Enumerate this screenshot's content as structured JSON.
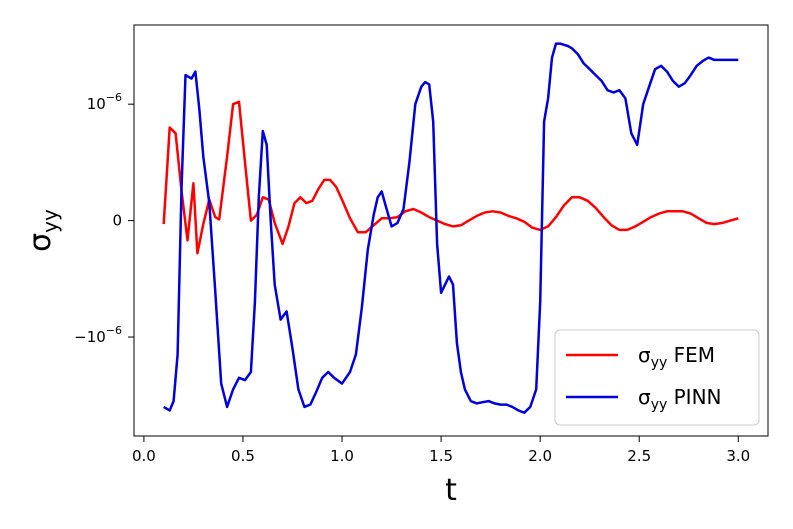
{
  "chart_data": {
    "type": "line",
    "xlabel": "t",
    "ylabel_base": "σ",
    "ylabel_sub": "yy",
    "xlim": [
      -0.05,
      3.15
    ],
    "ylim": [
      -1.85e-06,
      1.68e-06
    ],
    "xticks": [
      0.0,
      0.5,
      1.0,
      1.5,
      2.0,
      2.5,
      3.0
    ],
    "xtick_labels": [
      "0.0",
      "0.5",
      "1.0",
      "1.5",
      "2.0",
      "2.5",
      "3.0"
    ],
    "yticks": [
      -1e-06,
      0,
      1e-06
    ],
    "ytick_labels": [
      {
        "pre": "−10",
        "exp": "−6"
      },
      {
        "pre": "0",
        "exp": ""
      },
      {
        "pre": "10",
        "exp": "−6"
      }
    ],
    "grid": false,
    "legend_position": "lower-right",
    "series": [
      {
        "name": "FEM",
        "legend_prefix": "σ",
        "legend_sub": "yy",
        "color": "#ff0000",
        "x": [
          0.1,
          0.13,
          0.16,
          0.19,
          0.22,
          0.25,
          0.27,
          0.3,
          0.33,
          0.36,
          0.38,
          0.42,
          0.45,
          0.48,
          0.51,
          0.54,
          0.57,
          0.6,
          0.63,
          0.66,
          0.7,
          0.73,
          0.76,
          0.79,
          0.82,
          0.85,
          0.88,
          0.91,
          0.94,
          0.97,
          1.0,
          1.04,
          1.08,
          1.12,
          1.16,
          1.2,
          1.24,
          1.28,
          1.32,
          1.36,
          1.4,
          1.44,
          1.48,
          1.52,
          1.56,
          1.6,
          1.64,
          1.68,
          1.72,
          1.76,
          1.8,
          1.84,
          1.88,
          1.92,
          1.96,
          2.0,
          2.04,
          2.08,
          2.12,
          2.16,
          2.2,
          2.24,
          2.28,
          2.32,
          2.36,
          2.4,
          2.44,
          2.48,
          2.52,
          2.56,
          2.6,
          2.64,
          2.68,
          2.72,
          2.76,
          2.8,
          2.84,
          2.88,
          2.92,
          2.96,
          3.0
        ],
        "y": [
          -3e-08,
          8e-07,
          7.5e-07,
          2.5e-07,
          -1.7e-07,
          3.2e-07,
          -2.8e-07,
          -3e-08,
          1.8e-07,
          3e-08,
          1e-08,
          5.5e-07,
          1e-06,
          1.02e-06,
          5e-07,
          0.0,
          5e-08,
          2e-07,
          1.8e-07,
          -2e-08,
          -2e-07,
          -5e-08,
          1.5e-07,
          2e-07,
          1.5e-07,
          1.7e-07,
          2.7e-07,
          3.5e-07,
          3.5e-07,
          2.9e-07,
          1.8e-07,
          2e-08,
          -1e-07,
          -1e-07,
          -4e-08,
          2e-08,
          2e-08,
          3e-08,
          8e-08,
          1e-07,
          7e-08,
          3e-08,
          0.0,
          -3e-08,
          -5e-08,
          -4e-08,
          0.0,
          4e-08,
          7e-08,
          8e-08,
          7e-08,
          4e-08,
          2e-08,
          -1e-08,
          -6e-08,
          -8e-08,
          -5e-08,
          3e-08,
          1.3e-07,
          2e-07,
          2e-07,
          1.7e-07,
          1.1e-07,
          3e-08,
          -4e-08,
          -8e-08,
          -8e-08,
          -5e-08,
          -1e-08,
          3e-08,
          6e-08,
          8e-08,
          8e-08,
          8e-08,
          6e-08,
          2e-08,
          -2e-08,
          -3e-08,
          -2e-08,
          0.0,
          2e-08
        ]
      },
      {
        "name": "PINN",
        "legend_prefix": "σ",
        "legend_sub": "yy",
        "color": "#0000dd",
        "x": [
          0.1,
          0.13,
          0.15,
          0.17,
          0.19,
          0.21,
          0.24,
          0.26,
          0.28,
          0.3,
          0.33,
          0.36,
          0.39,
          0.42,
          0.45,
          0.48,
          0.51,
          0.54,
          0.56,
          0.58,
          0.6,
          0.62,
          0.64,
          0.66,
          0.69,
          0.72,
          0.75,
          0.78,
          0.81,
          0.84,
          0.87,
          0.9,
          0.93,
          0.96,
          1.0,
          1.04,
          1.07,
          1.1,
          1.13,
          1.16,
          1.18,
          1.2,
          1.22,
          1.25,
          1.28,
          1.31,
          1.34,
          1.37,
          1.4,
          1.42,
          1.44,
          1.46,
          1.48,
          1.5,
          1.52,
          1.54,
          1.56,
          1.58,
          1.6,
          1.62,
          1.65,
          1.68,
          1.71,
          1.74,
          1.77,
          1.8,
          1.83,
          1.86,
          1.89,
          1.92,
          1.95,
          1.98,
          2.0,
          2.02,
          2.04,
          2.06,
          2.08,
          2.1,
          2.12,
          2.14,
          2.16,
          2.19,
          2.22,
          2.25,
          2.28,
          2.31,
          2.34,
          2.37,
          2.4,
          2.43,
          2.46,
          2.49,
          2.52,
          2.55,
          2.58,
          2.61,
          2.64,
          2.67,
          2.7,
          2.73,
          2.76,
          2.79,
          2.82,
          2.85,
          2.88,
          2.91,
          2.94,
          2.97,
          3.0
        ],
        "y": [
          -1.6e-06,
          -1.63e-06,
          -1.55e-06,
          -1.15e-06,
          3e-07,
          1.25e-06,
          1.22e-06,
          1.28e-06,
          9.5e-07,
          5.5e-07,
          1.5e-07,
          -6e-07,
          -1.4e-06,
          -1.6e-06,
          -1.45e-06,
          -1.35e-06,
          -1.37e-06,
          -1.3e-06,
          -7e-07,
          2e-07,
          7.7e-07,
          6.5e-07,
          0.0,
          -5.5e-07,
          -8.5e-07,
          -7.8e-07,
          -1.1e-06,
          -1.45e-06,
          -1.6e-06,
          -1.58e-06,
          -1.47e-06,
          -1.35e-06,
          -1.3e-06,
          -1.35e-06,
          -1.4e-06,
          -1.3e-06,
          -1.15e-06,
          -7.5e-07,
          -2.5e-07,
          5e-08,
          2e-07,
          2.5e-07,
          1.3e-07,
          -5e-08,
          -2e-08,
          1e-07,
          5e-07,
          1e-06,
          1.15e-06,
          1.19e-06,
          1.17e-06,
          8.5e-07,
          -2e-07,
          -6.2e-07,
          -5.5e-07,
          -4.8e-07,
          -5.5e-07,
          -1.05e-06,
          -1.3e-06,
          -1.45e-06,
          -1.55e-06,
          -1.57e-06,
          -1.56e-06,
          -1.55e-06,
          -1.57e-06,
          -1.58e-06,
          -1.58e-06,
          -1.6e-06,
          -1.63e-06,
          -1.65e-06,
          -1.6e-06,
          -1.45e-06,
          -7e-07,
          8.5e-07,
          1.05e-06,
          1.4e-06,
          1.52e-06,
          1.52e-06,
          1.51e-06,
          1.5e-06,
          1.48e-06,
          1.43e-06,
          1.35e-06,
          1.3e-06,
          1.25e-06,
          1.2e-06,
          1.12e-06,
          1.1e-06,
          1.12e-06,
          1.05e-06,
          7.5e-07,
          6.5e-07,
          1e-06,
          1.15e-06,
          1.3e-06,
          1.33e-06,
          1.28e-06,
          1.2e-06,
          1.15e-06,
          1.18e-06,
          1.25e-06,
          1.33e-06,
          1.37e-06,
          1.4e-06,
          1.38e-06,
          1.38e-06,
          1.38e-06,
          1.38e-06,
          1.38e-06
        ]
      }
    ]
  }
}
